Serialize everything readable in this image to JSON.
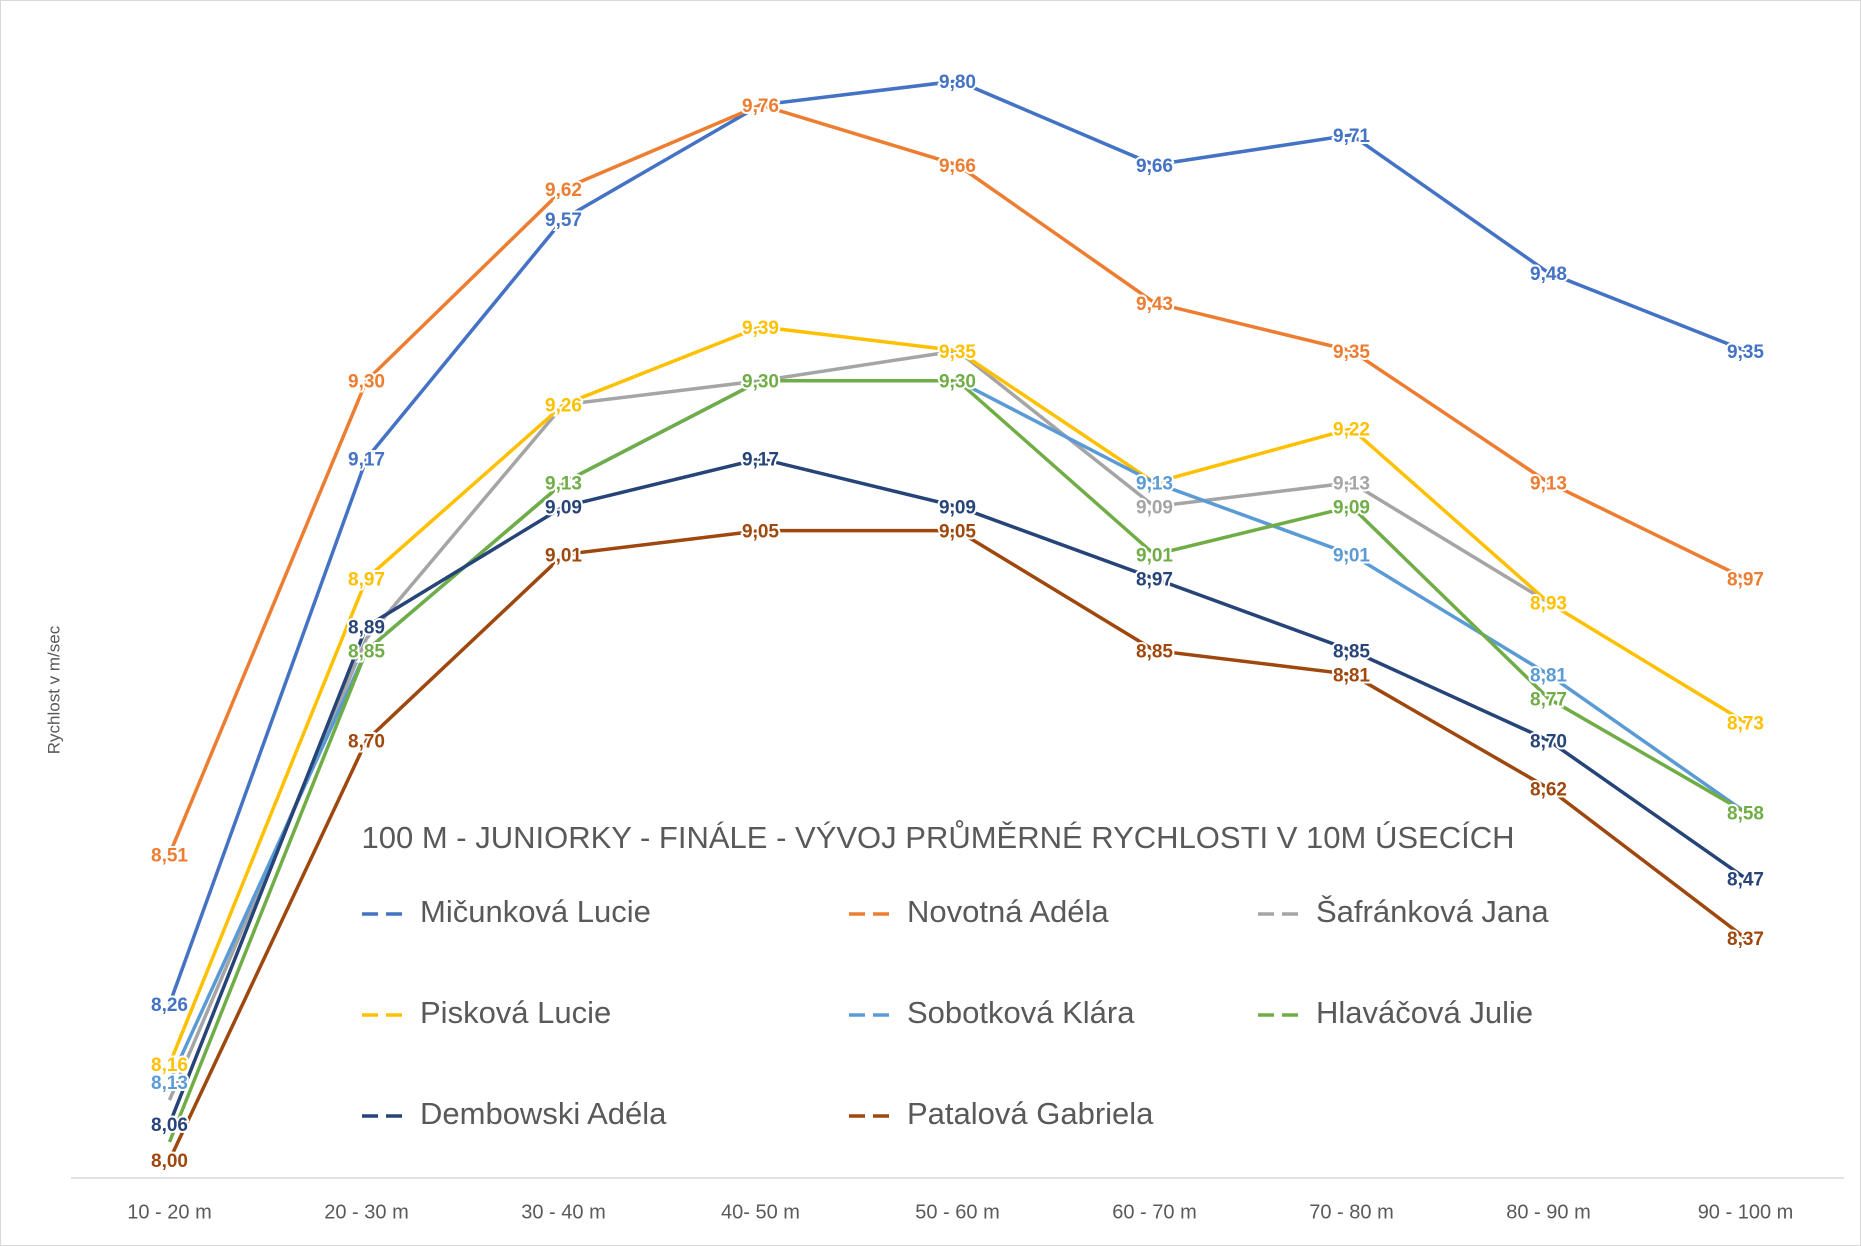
{
  "chart_data": {
    "type": "line",
    "title": "100 M - JUNIORKY - FINÁLE - VÝVOJ PRŮMĚRNÉ RYCHLOSTI V 10M ÚSECÍCH",
    "y_label": "Rychlost v m/sec",
    "categories": [
      "10 - 20 m",
      "20 - 30 m",
      "30 - 40 m",
      "40- 50 m",
      "50 - 60 m",
      "60 - 70 m",
      "70 - 80 m",
      "80 - 90 m",
      "90 - 100 m"
    ],
    "ylim": [
      7.97,
      9.84
    ],
    "series": [
      {
        "name": "Mičunková Lucie",
        "color": "#4472c4",
        "values": [
          8.26,
          9.17,
          9.57,
          9.76,
          9.8,
          9.66,
          9.71,
          9.48,
          9.35
        ],
        "value_labels": [
          "8,26",
          "9,17",
          "9,57",
          null,
          "9,80",
          "9,66",
          "9,71",
          "9,48",
          "9,35"
        ]
      },
      {
        "name": "Novotná Adéla",
        "color": "#ed7d31",
        "values": [
          8.51,
          9.3,
          9.62,
          9.76,
          9.66,
          9.43,
          9.35,
          9.13,
          8.97
        ],
        "value_labels": [
          "8,51",
          "9,30",
          "9,62",
          "9,76",
          "9,66",
          "9,43",
          "9,35",
          "9,13",
          "8,97"
        ]
      },
      {
        "name": "Šafránková Jana",
        "color": "#a5a5a5",
        "values": [
          8.1,
          8.87,
          9.26,
          9.3,
          9.35,
          9.09,
          9.13,
          8.93,
          null
        ],
        "value_labels": [
          null,
          null,
          null,
          null,
          null,
          "9,09",
          "9,13",
          null,
          null
        ]
      },
      {
        "name": "Pisková Lucie",
        "color": "#ffc000",
        "values": [
          8.16,
          8.97,
          9.26,
          9.39,
          9.35,
          9.13,
          9.22,
          8.93,
          8.73
        ],
        "value_labels": [
          "8,16",
          "8,97",
          "9,26",
          "9,39",
          "9,35",
          null,
          "9,22",
          "8,93",
          "8,73"
        ]
      },
      {
        "name": "Sobotková Klára",
        "color": "#5b9bd5",
        "values": [
          8.13,
          8.85,
          9.13,
          9.3,
          9.3,
          9.13,
          9.01,
          8.81,
          8.58
        ],
        "value_labels": [
          "8,13",
          null,
          null,
          null,
          null,
          "9,13",
          "9,01",
          "8,81",
          null
        ]
      },
      {
        "name": "Hlaváčová Julie",
        "color": "#70ad47",
        "values": [
          8.03,
          8.85,
          9.13,
          9.3,
          9.3,
          9.01,
          9.09,
          8.77,
          8.58
        ],
        "value_labels": [
          null,
          "8,85",
          "9,13",
          "9,30",
          "9,30",
          "9,01",
          "9,09",
          "8,77",
          "8,58"
        ]
      },
      {
        "name": "Dembowski Adéla",
        "color": "#264478",
        "values": [
          8.06,
          8.89,
          9.09,
          9.17,
          9.09,
          8.97,
          8.85,
          8.7,
          8.47
        ],
        "value_labels": [
          "8,06",
          "8,89",
          "9,09",
          "9,17",
          "9,09",
          "8,97",
          "8,85",
          "8,70",
          "8,47"
        ]
      },
      {
        "name": "Patalová Gabriela",
        "color": "#9e480e",
        "values": [
          8.0,
          8.7,
          9.01,
          9.05,
          9.05,
          8.85,
          8.81,
          8.62,
          8.37
        ],
        "value_labels": [
          "8,00",
          "8,70",
          "9,01",
          "9,05",
          "9,05",
          "8,85",
          "8,81",
          "8,62",
          "8,37"
        ]
      }
    ]
  }
}
